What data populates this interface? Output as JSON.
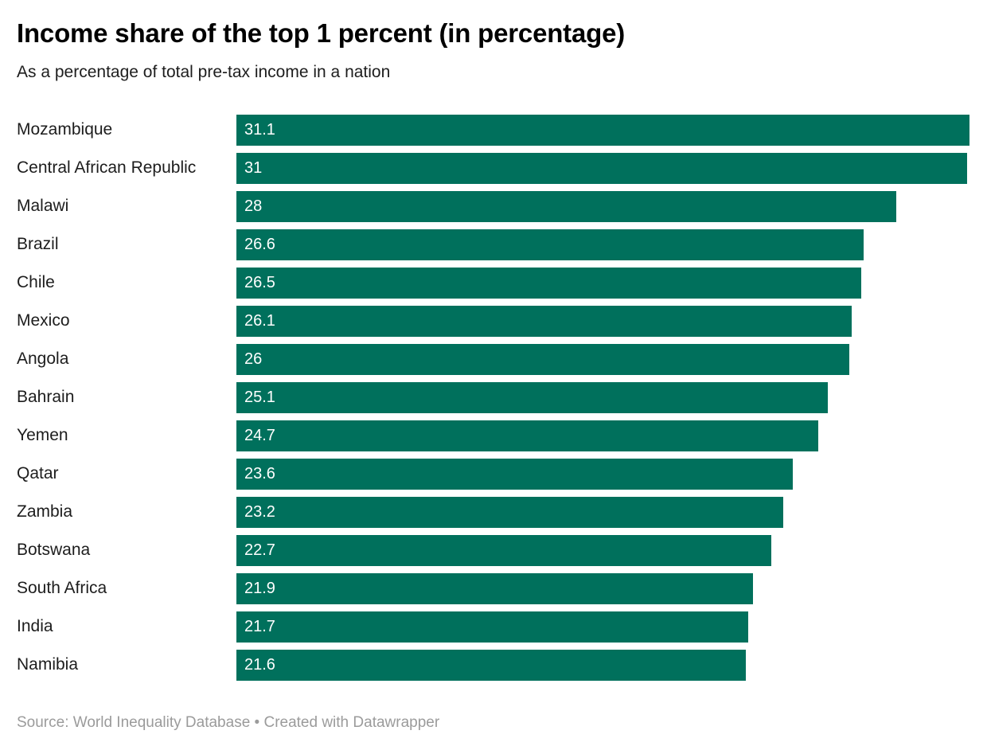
{
  "header": {
    "title": "Income share of the top 1 percent (in percentage)",
    "subtitle": "As a percentage of total pre-tax income in a nation"
  },
  "footer": {
    "text": "Source: World Inequality Database • Created with Datawrapper"
  },
  "chart_data": {
    "type": "bar",
    "orientation": "horizontal",
    "title": "Income share of the top 1 percent (in percentage)",
    "subtitle": "As a percentage of total pre-tax income in a nation",
    "categories": [
      "Mozambique",
      "Central African Republic",
      "Malawi",
      "Brazil",
      "Chile",
      "Mexico",
      "Angola",
      "Bahrain",
      "Yemen",
      "Qatar",
      "Zambia",
      "Botswana",
      "South Africa",
      "India",
      "Namibia"
    ],
    "values": [
      31.1,
      31,
      28,
      26.6,
      26.5,
      26.1,
      26,
      25.1,
      24.7,
      23.6,
      23.2,
      22.7,
      21.9,
      21.7,
      21.6
    ],
    "value_labels": [
      "31.1",
      "31",
      "28",
      "26.6",
      "26.5",
      "26.1",
      "26",
      "25.1",
      "24.7",
      "23.6",
      "23.2",
      "22.7",
      "21.9",
      "21.7",
      "21.6"
    ],
    "xlim": [
      0,
      31.1
    ],
    "grid": false,
    "legend": false,
    "value_labels_inside_bars": true,
    "bar_color": "#00705c",
    "value_label_color": "#ffffff",
    "category_label_color": "#1d1d1d",
    "source": "World Inequality Database",
    "credit": "Created with Datawrapper"
  }
}
